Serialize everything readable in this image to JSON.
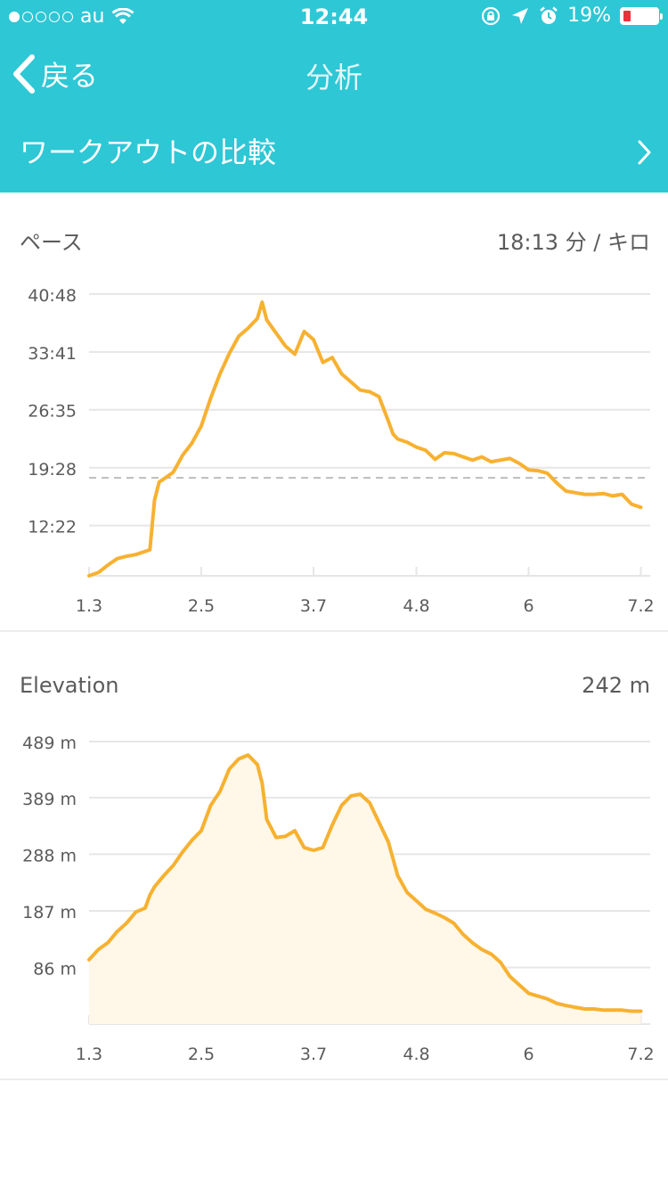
{
  "status_bar": {
    "carrier": "au",
    "time": "12:44",
    "battery": "19%"
  },
  "nav": {
    "back_label": "戻る",
    "title": "分析"
  },
  "compare": {
    "label": "ワークアウトの比較"
  },
  "colors": {
    "accent": "#2ec7d5",
    "line": "#f7b131",
    "fill": "#fff7e8",
    "grid": "#e6e6e6",
    "ref": "#bdbdbd"
  },
  "pace": {
    "title": "ペース",
    "value": "18:13 分 / キロ",
    "chart_data": {
      "type": "line",
      "x_ticks": [
        "1.3",
        "2.5",
        "3.7",
        "4.8",
        "6",
        "7.2"
      ],
      "x_tick_values": [
        1.3,
        2.5,
        3.7,
        4.8,
        6,
        7.2
      ],
      "y_ticks": [
        "40:48",
        "33:41",
        "26:35",
        "19:28",
        "12:22"
      ],
      "y_tick_values": [
        40.8,
        33.683,
        26.583,
        19.467,
        12.367
      ],
      "ylim": [
        6.2,
        41.0
      ],
      "xlim": [
        1.3,
        7.3
      ],
      "average_line": 18.22,
      "x": [
        1.3,
        1.4,
        1.5,
        1.6,
        1.7,
        1.8,
        1.9,
        1.95,
        2.0,
        2.05,
        2.1,
        2.2,
        2.3,
        2.4,
        2.5,
        2.6,
        2.7,
        2.8,
        2.9,
        3.0,
        3.1,
        3.15,
        3.2,
        3.3,
        3.4,
        3.5,
        3.6,
        3.7,
        3.8,
        3.9,
        4.0,
        4.1,
        4.2,
        4.3,
        4.4,
        4.5,
        4.55,
        4.6,
        4.7,
        4.8,
        4.9,
        5.0,
        5.1,
        5.2,
        5.3,
        5.4,
        5.5,
        5.6,
        5.7,
        5.8,
        5.9,
        6.0,
        6.1,
        6.2,
        6.3,
        6.4,
        6.5,
        6.6,
        6.7,
        6.8,
        6.9,
        7.0,
        7.1,
        7.2
      ],
      "y": [
        6.2,
        6.6,
        7.5,
        8.3,
        8.6,
        8.8,
        9.2,
        9.4,
        15.5,
        17.7,
        18.1,
        18.9,
        21.0,
        22.5,
        24.6,
        28.0,
        31.0,
        33.5,
        35.6,
        36.6,
        37.8,
        39.8,
        37.6,
        36.0,
        34.4,
        33.4,
        36.2,
        35.2,
        32.4,
        33.0,
        31.0,
        30.0,
        29.0,
        28.8,
        28.2,
        25.2,
        23.6,
        23.0,
        22.6,
        22.0,
        21.6,
        20.5,
        21.3,
        21.2,
        20.8,
        20.4,
        20.8,
        20.2,
        20.4,
        20.6,
        20.0,
        19.2,
        19.1,
        18.8,
        17.6,
        16.6,
        16.4,
        16.2,
        16.2,
        16.3,
        16.0,
        16.2,
        15.0,
        14.6
      ]
    }
  },
  "elevation": {
    "title": "Elevation",
    "value": "242 m",
    "chart_data": {
      "type": "area",
      "x_ticks": [
        "1.3",
        "2.5",
        "3.7",
        "4.8",
        "6",
        "7.2"
      ],
      "x_tick_values": [
        1.3,
        2.5,
        3.7,
        4.8,
        6,
        7.2
      ],
      "y_ticks": [
        "489 m",
        "389 m",
        "288 m",
        "187 m",
        "86 m"
      ],
      "y_tick_values": [
        489,
        389,
        288,
        187,
        86
      ],
      "ylim": [
        -15,
        489
      ],
      "xlim": [
        1.3,
        7.3
      ],
      "x": [
        1.3,
        1.4,
        1.5,
        1.6,
        1.7,
        1.8,
        1.9,
        1.95,
        2.0,
        2.1,
        2.2,
        2.3,
        2.4,
        2.5,
        2.6,
        2.7,
        2.8,
        2.9,
        3.0,
        3.1,
        3.15,
        3.2,
        3.3,
        3.4,
        3.5,
        3.6,
        3.7,
        3.8,
        3.9,
        4.0,
        4.1,
        4.2,
        4.3,
        4.4,
        4.5,
        4.6,
        4.7,
        4.8,
        4.9,
        5.0,
        5.1,
        5.2,
        5.3,
        5.4,
        5.5,
        5.6,
        5.7,
        5.8,
        5.9,
        6.0,
        6.1,
        6.2,
        6.3,
        6.4,
        6.5,
        6.6,
        6.7,
        6.8,
        6.9,
        7.0,
        7.1,
        7.2
      ],
      "y": [
        100,
        118,
        130,
        150,
        165,
        185,
        192,
        215,
        230,
        250,
        268,
        292,
        313,
        330,
        375,
        400,
        440,
        458,
        465,
        448,
        415,
        350,
        318,
        320,
        330,
        300,
        295,
        300,
        340,
        375,
        392,
        395,
        380,
        345,
        310,
        250,
        220,
        205,
        190,
        183,
        175,
        165,
        145,
        130,
        118,
        110,
        95,
        70,
        55,
        40,
        35,
        30,
        22,
        18,
        15,
        12,
        12,
        10,
        10,
        10,
        8,
        8
      ]
    }
  }
}
